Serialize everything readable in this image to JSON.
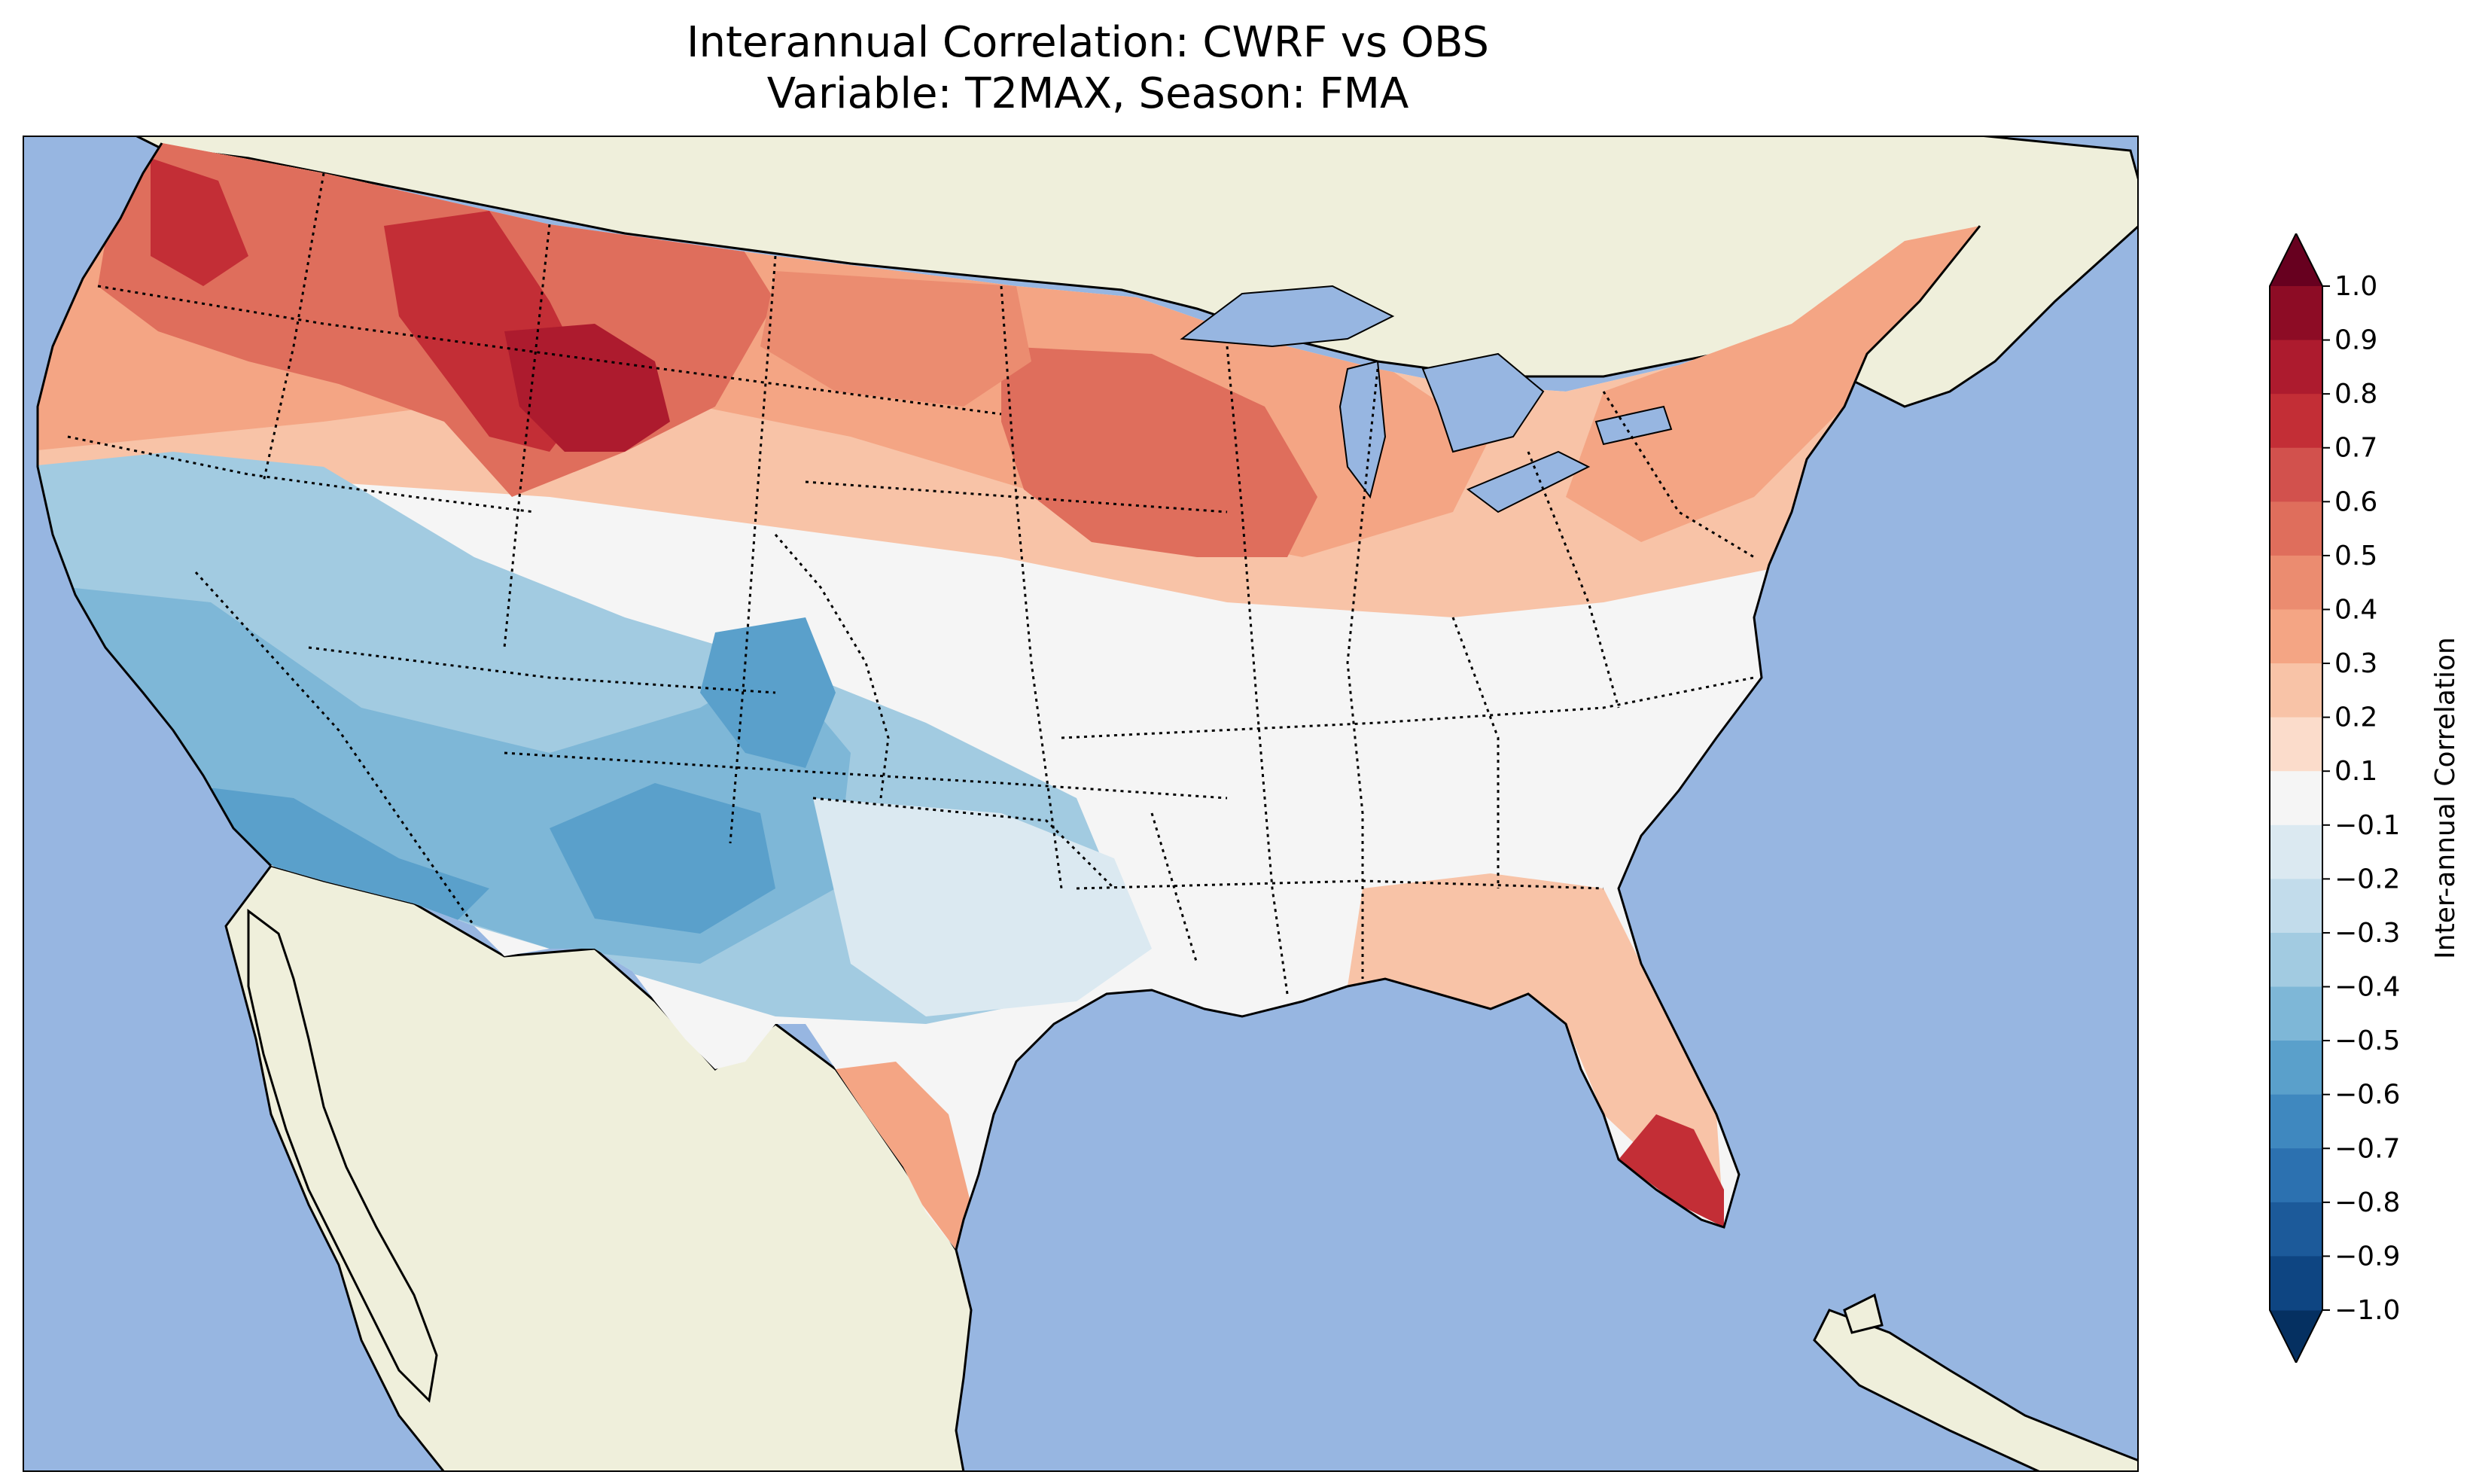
{
  "title": {
    "line1": "Interannual Correlation: CWRF vs OBS",
    "line2": "Variable: T2MAX, Season: FMA"
  },
  "map": {
    "ocean_color": "#97b6e1",
    "land_color": "#efefdb",
    "lake_color": "#97b6e1",
    "coastline_color": "#000000",
    "state_border_style": "dotted"
  },
  "colorbar": {
    "label": "Inter-annual Correlation",
    "extend": "both",
    "ticks": [
      "1.0",
      "0.9",
      "0.8",
      "0.7",
      "0.6",
      "0.5",
      "0.4",
      "0.3",
      "0.2",
      "0.1",
      "−0.1",
      "−0.2",
      "−0.3",
      "−0.4",
      "−0.5",
      "−0.6",
      "−0.7",
      "−0.8",
      "−0.9",
      "−1.0"
    ],
    "levels": [
      1.0,
      0.9,
      0.8,
      0.7,
      0.6,
      0.5,
      0.4,
      0.3,
      0.2,
      0.1,
      -0.1,
      -0.2,
      -0.3,
      -0.4,
      -0.5,
      -0.6,
      -0.7,
      -0.8,
      -0.9,
      -1.0
    ],
    "colors": [
      "#8d0c25",
      "#ad1b2e",
      "#c32e36",
      "#d2514d",
      "#df6e5c",
      "#eb8c70",
      "#f4a584",
      "#f8c3a7",
      "#fbdccb",
      "#f5f5f5",
      "#dbe9f1",
      "#c2dceb",
      "#a2cbe1",
      "#7eb7d7",
      "#5aa0cb",
      "#3f88bf",
      "#2c71b0",
      "#1c5a9a",
      "#0e4582",
      "#08306b"
    ],
    "over_color": "#67001f",
    "under_color": "#053061"
  }
}
